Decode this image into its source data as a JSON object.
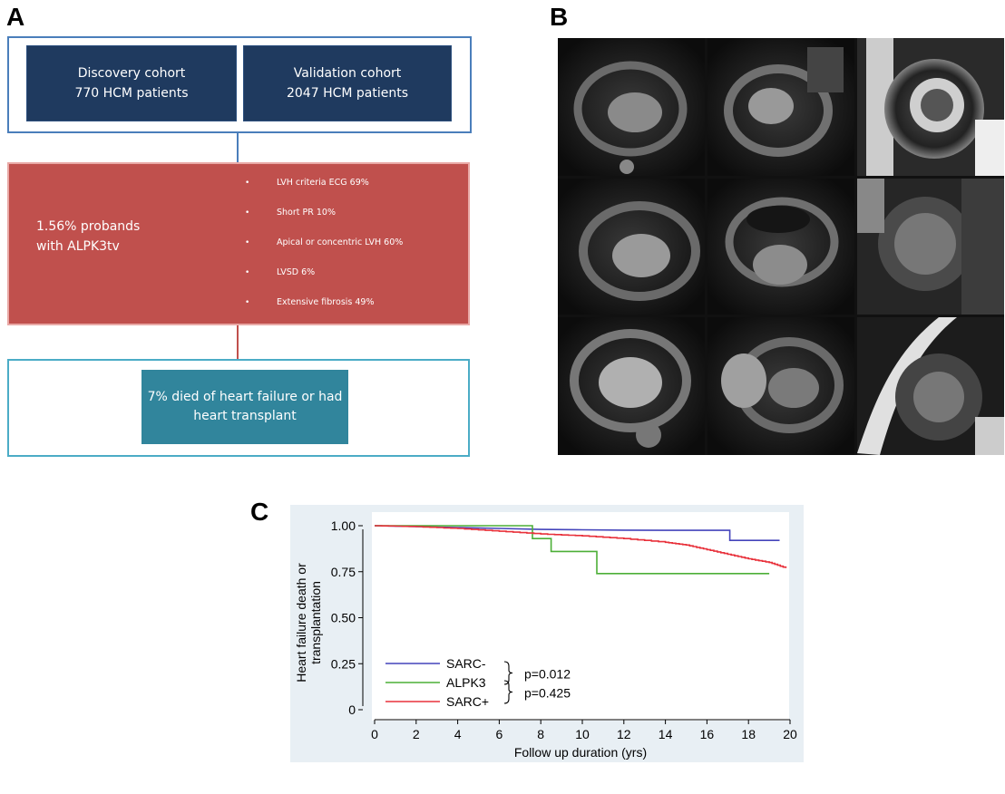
{
  "panels": {
    "a": "A",
    "b": "B",
    "c": "C"
  },
  "flow": {
    "discovery": {
      "line1": "Discovery cohort",
      "line2": "770 HCM patients"
    },
    "validation": {
      "line1": "Validation cohort",
      "line2": "2047 HCM patients"
    },
    "probands": {
      "line1": "1.56% probands",
      "line2": "with ALPK3tv"
    },
    "criteria": [
      "LVH criteria ECG 69%",
      "Short PR 10%",
      "Apical or concentric LVH 60%",
      "LVSD 6%",
      "Extensive fibrosis 49%"
    ],
    "outcome": {
      "line1": "7% died of heart failure or had",
      "line2": "heart transplant"
    }
  },
  "chart_data": {
    "type": "line",
    "xlabel": "Follow up duration (yrs)",
    "ylabel": "Heart failure death or transplantation",
    "ylabel_lines": [
      "Heart failure death or",
      "transplantation"
    ],
    "xlim": [
      0,
      20
    ],
    "ylim": [
      0,
      1
    ],
    "xticks": [
      0,
      2,
      4,
      6,
      8,
      10,
      12,
      14,
      16,
      18,
      20
    ],
    "yticks": [
      "0",
      "0.25",
      "0.50",
      "0.75",
      "1.00"
    ],
    "ytick_values": [
      0,
      0.25,
      0.5,
      0.75,
      1.0
    ],
    "grid": false,
    "legend_position": "bottom-left",
    "series": [
      {
        "name": "SARC-",
        "color": "#4444bb",
        "step": true,
        "x": [
          0,
          2,
          4,
          6,
          8,
          10,
          12,
          14,
          16,
          17.1,
          17.1,
          19.5
        ],
        "y": [
          1.0,
          0.995,
          0.99,
          0.985,
          0.98,
          0.978,
          0.976,
          0.975,
          0.975,
          0.975,
          0.92,
          0.92
        ]
      },
      {
        "name": "ALPK3",
        "color": "#4caf37",
        "step": true,
        "x": [
          0,
          7.6,
          7.6,
          8.5,
          8.5,
          10.7,
          10.7,
          19
        ],
        "y": [
          1.0,
          1.0,
          0.93,
          0.93,
          0.86,
          0.86,
          0.74,
          0.74
        ]
      },
      {
        "name": "SARC+",
        "color": "#e8303a",
        "step": false,
        "x": [
          0,
          2,
          4,
          6,
          8,
          10,
          12,
          14,
          15,
          16,
          17,
          18,
          19,
          19.8
        ],
        "y": [
          1.0,
          0.995,
          0.985,
          0.97,
          0.955,
          0.945,
          0.93,
          0.91,
          0.895,
          0.87,
          0.845,
          0.82,
          0.8,
          0.77
        ]
      }
    ],
    "annotations": [
      {
        "text": "p=0.012",
        "between": [
          "SARC-",
          "ALPK3"
        ]
      },
      {
        "text": "p=0.425",
        "between": [
          "ALPK3",
          "SARC+"
        ]
      }
    ]
  }
}
